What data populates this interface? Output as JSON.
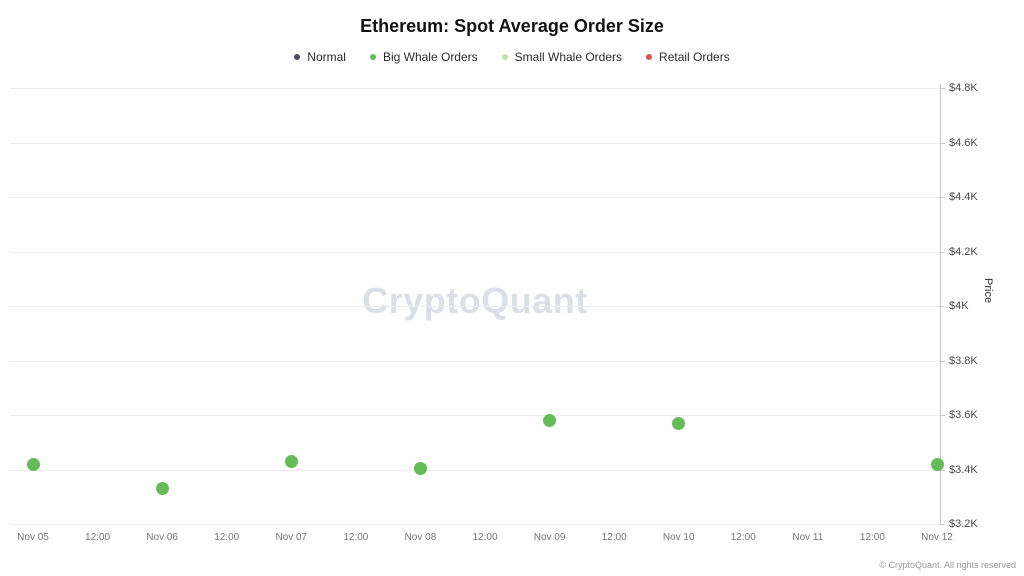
{
  "title": "Ethereum: Spot Average Order Size",
  "watermark": "CryptoQuant",
  "copyright": "© CryptoQuant. All rights reserved",
  "legend": [
    {
      "label": "Normal",
      "color": "#4a4a5e"
    },
    {
      "label": "Big Whale Orders",
      "color": "#65bb58"
    },
    {
      "label": "Small Whale Orders",
      "color": "#bce3ab"
    },
    {
      "label": "Retail Orders",
      "color": "#d9534f"
    }
  ],
  "chart_data": {
    "type": "scatter",
    "title": "Ethereum: Spot Average Order Size",
    "xlabel": "",
    "ylabel": "Price",
    "ylim": [
      3200,
      4800
    ],
    "grid": true,
    "legend_position": "top",
    "y_tick_labels": [
      "$4.8K",
      "$4.6K",
      "$4.4K",
      "$4.2K",
      "$4K",
      "$3.8K",
      "$3.6K",
      "$3.4K",
      "$3.2K"
    ],
    "y_tick_values": [
      4800,
      4600,
      4400,
      4200,
      4000,
      3800,
      3600,
      3400,
      3200
    ],
    "x_ticks": [
      "Nov 05",
      "12:00",
      "Nov 06",
      "12:00",
      "Nov 07",
      "12:00",
      "Nov 08",
      "12:00",
      "Nov 09",
      "12:00",
      "Nov 10",
      "12:00",
      "Nov 11",
      "12:00",
      "Nov 12"
    ],
    "series": [
      {
        "name": "Big Whale Orders",
        "color": "#65bb58",
        "points": [
          {
            "x": "Nov 05",
            "x_index": 0,
            "value": 3420
          },
          {
            "x": "Nov 06",
            "x_index": 2,
            "value": 3330
          },
          {
            "x": "Nov 07",
            "x_index": 4,
            "value": 3430
          },
          {
            "x": "Nov 08",
            "x_index": 6,
            "value": 3405
          },
          {
            "x": "Nov 09",
            "x_index": 8,
            "value": 3580
          },
          {
            "x": "Nov 10",
            "x_index": 10,
            "value": 3570
          },
          {
            "x": "Nov 12",
            "x_index": 14,
            "value": 3420
          }
        ]
      }
    ]
  }
}
